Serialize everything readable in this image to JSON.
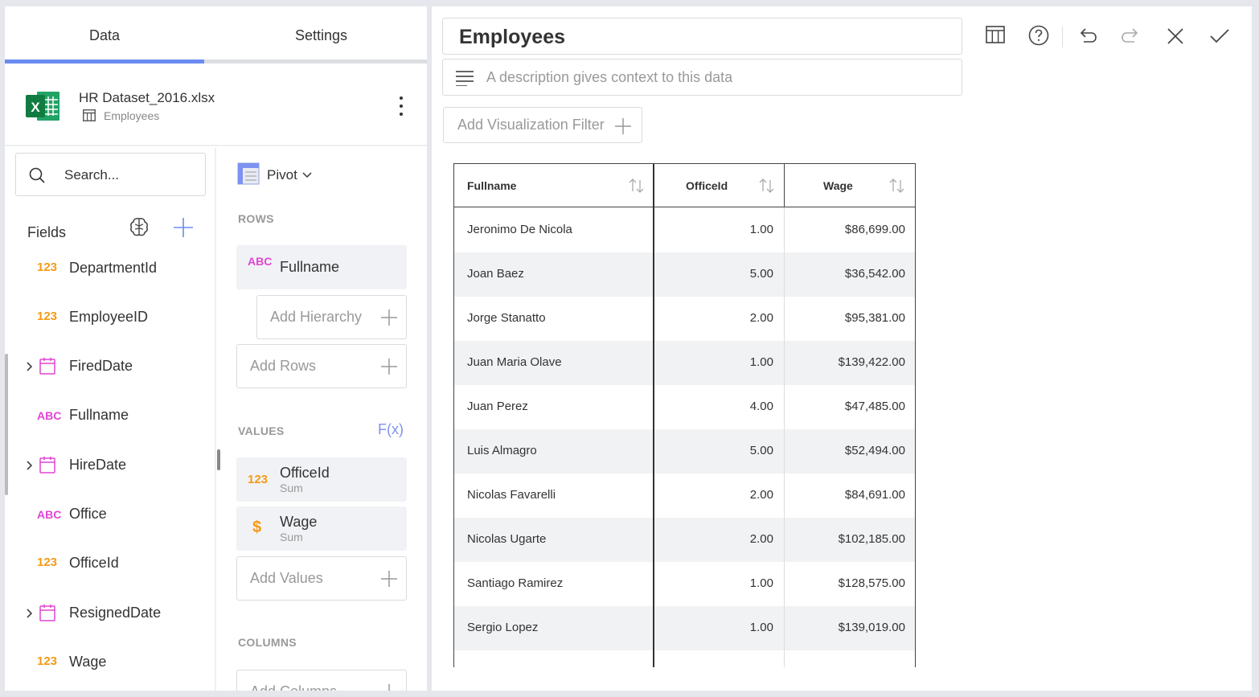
{
  "tabs": {
    "data": "Data",
    "settings": "Settings"
  },
  "datasource": {
    "file": "HR Dataset_2016.xlsx",
    "sheet": "Employees",
    "icon": "excel-icon"
  },
  "search": {
    "placeholder": "Search..."
  },
  "fields": {
    "title": "Fields",
    "items": [
      {
        "type": "123",
        "name": "DepartmentId"
      },
      {
        "type": "123",
        "name": "EmployeeID"
      },
      {
        "type": "date",
        "name": "FiredDate"
      },
      {
        "type": "ABC",
        "name": "Fullname"
      },
      {
        "type": "date",
        "name": "HireDate"
      },
      {
        "type": "ABC",
        "name": "Office"
      },
      {
        "type": "123",
        "name": "OfficeId"
      },
      {
        "type": "date",
        "name": "ResignedDate"
      },
      {
        "type": "123",
        "name": "Wage"
      }
    ]
  },
  "pivot": {
    "label": "Pivot",
    "rows_label": "ROWS",
    "rows_chip": {
      "type": "ABC",
      "name": "Fullname"
    },
    "add_hierarchy": "Add Hierarchy",
    "add_rows": "Add Rows",
    "values_label": "VALUES",
    "fx": "F(x)",
    "values_chips": [
      {
        "type": "123",
        "name": "OfficeId",
        "agg": "Sum"
      },
      {
        "type": "$",
        "name": "Wage",
        "agg": "Sum"
      }
    ],
    "add_values": "Add Values",
    "columns_label": "COLUMNS",
    "add_columns": "Add Columns"
  },
  "editor": {
    "title": "Employees",
    "description_placeholder": "A description gives context to this data",
    "add_filter": "Add Visualization Filter"
  },
  "table": {
    "headers": [
      "Fullname",
      "OfficeId",
      "Wage"
    ],
    "rows": [
      [
        "Jeronimo De Nicola",
        "1.00",
        "$86,699.00"
      ],
      [
        "Joan Baez",
        "5.00",
        "$36,542.00"
      ],
      [
        "Jorge Stanatto",
        "2.00",
        "$95,381.00"
      ],
      [
        "Juan Maria Olave",
        "1.00",
        "$139,422.00"
      ],
      [
        "Juan Perez",
        "4.00",
        "$47,485.00"
      ],
      [
        "Luis Almagro",
        "5.00",
        "$52,494.00"
      ],
      [
        "Nicolas Favarelli",
        "2.00",
        "$84,691.00"
      ],
      [
        "Nicolas Ugarte",
        "2.00",
        "$102,185.00"
      ],
      [
        "Santiago Ramirez",
        "1.00",
        "$128,575.00"
      ],
      [
        "Sergio Lopez",
        "1.00",
        "$139,019.00"
      ]
    ]
  },
  "colors": {
    "accent": "#6b8cf2",
    "number": "#f59a16",
    "text_type": "#e045d4",
    "date": "#e045d4"
  }
}
